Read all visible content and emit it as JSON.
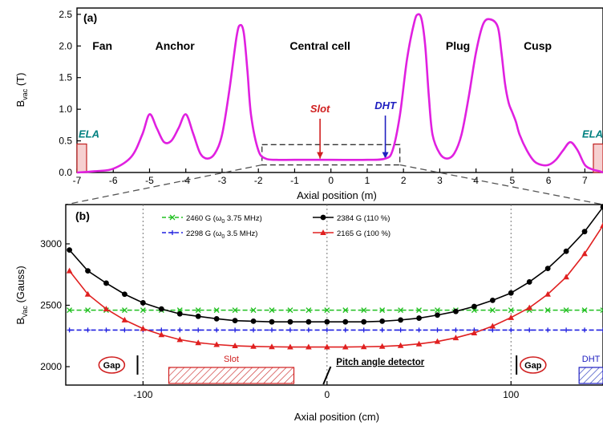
{
  "chart_data": [
    {
      "panel_label": "(a)",
      "type": "line",
      "xlabel": "Axial position (m)",
      "ylabel": "B",
      "ylabel_sub": "vac",
      "ylabel_unit": " (T)",
      "xlim": [
        -7,
        7.5
      ],
      "ylim": [
        0,
        2.6
      ],
      "xticks": [
        -7,
        -6,
        -5,
        -4,
        -3,
        -2,
        -1,
        0,
        1,
        2,
        3,
        4,
        5,
        6,
        7
      ],
      "yticks": [
        0.0,
        0.5,
        1.0,
        1.5,
        2.0,
        2.5
      ],
      "ytick_labels": [
        "0.0",
        "0.5",
        "1.0",
        "1.5",
        "2.0",
        "2.5"
      ],
      "series": [
        {
          "color": "#e020e0",
          "x": [
            -7.0,
            -6.5,
            -6.0,
            -5.5,
            -5.2,
            -5.0,
            -4.8,
            -4.6,
            -4.4,
            -4.2,
            -4.0,
            -3.8,
            -3.6,
            -3.4,
            -3.2,
            -3.0,
            -2.8,
            -2.6,
            -2.5,
            -2.4,
            -2.3,
            -2.2,
            -2.0,
            -1.8,
            -1.5,
            -1.0,
            0.0,
            1.0,
            1.5,
            1.7,
            1.9,
            2.1,
            2.3,
            2.4,
            2.5,
            2.6,
            2.7,
            2.8,
            3.0,
            3.2,
            3.4,
            3.6,
            3.8,
            4.0,
            4.2,
            4.4,
            4.6,
            4.7,
            4.8,
            4.9,
            5.0,
            5.1,
            5.2,
            5.4,
            5.6,
            5.8,
            6.0,
            6.2,
            6.4,
            6.6,
            6.8,
            7.0,
            7.2,
            7.4,
            7.5
          ],
          "y": [
            0.0,
            0.02,
            0.06,
            0.25,
            0.6,
            0.92,
            0.7,
            0.48,
            0.5,
            0.7,
            0.92,
            0.62,
            0.3,
            0.22,
            0.3,
            0.6,
            1.3,
            2.15,
            2.33,
            2.2,
            1.6,
            0.9,
            0.35,
            0.22,
            0.2,
            0.2,
            0.2,
            0.2,
            0.22,
            0.35,
            0.9,
            1.8,
            2.38,
            2.5,
            2.42,
            2.0,
            1.2,
            0.6,
            0.3,
            0.22,
            0.3,
            0.6,
            1.2,
            1.9,
            2.35,
            2.42,
            2.3,
            1.9,
            1.4,
            1.1,
            0.95,
            0.8,
            0.6,
            0.35,
            0.18,
            0.12,
            0.12,
            0.2,
            0.35,
            0.48,
            0.35,
            0.12,
            0.05,
            0.02,
            0.0
          ]
        }
      ],
      "region_labels": [
        {
          "text": "Fan",
          "x": -6.3
        },
        {
          "text": "Anchor",
          "x": -4.3
        },
        {
          "text": "Central cell",
          "x": -0.3
        },
        {
          "text": "Plug",
          "x": 3.5
        },
        {
          "text": "Cusp",
          "x": 5.7
        }
      ],
      "annotations": [
        {
          "text": "Slot",
          "x": -0.3,
          "arrow_top": 0.85,
          "arrow_bottom": 0.22,
          "color": "#d02020"
        },
        {
          "text": "DHT",
          "x": 1.5,
          "arrow_top": 0.9,
          "arrow_bottom": 0.22,
          "color": "#2020c0"
        },
        {
          "text": "ELA",
          "x": -7.0,
          "color": "#008080"
        },
        {
          "text": "ELA",
          "x": 7.5,
          "color": "#008080"
        }
      ],
      "zoom_box": {
        "x": [
          -1.9,
          1.9
        ],
        "y": [
          0.12,
          0.44
        ]
      }
    },
    {
      "panel_label": "(b)",
      "type": "line",
      "xlabel": "Axial position (cm)",
      "ylabel": "B",
      "ylabel_sub": "Vac",
      "ylabel_unit": " (Gauss)",
      "xlim": [
        -142,
        150
      ],
      "ylim": [
        1850,
        3320
      ],
      "xticks": [
        -100,
        0,
        100
      ],
      "yticks": [
        2000,
        2500,
        3000
      ],
      "grid_x": [
        -100,
        0,
        100
      ],
      "legend_placement": "top",
      "series": [
        {
          "name": "2460 G (ω",
          "name_sub": "0",
          "name_rest": " 3.75 MHz)",
          "color": "#20c020",
          "marker": "x",
          "x": [
            -140,
            -130,
            -120,
            -110,
            -100,
            -90,
            -80,
            -70,
            -60,
            -50,
            -40,
            -30,
            -20,
            -10,
            0,
            10,
            20,
            30,
            40,
            50,
            60,
            70,
            80,
            90,
            100,
            110,
            120,
            130,
            140,
            150
          ],
          "y": [
            2460,
            2460,
            2460,
            2460,
            2460,
            2460,
            2460,
            2460,
            2460,
            2460,
            2460,
            2460,
            2460,
            2460,
            2460,
            2460,
            2460,
            2460,
            2460,
            2460,
            2460,
            2460,
            2460,
            2460,
            2460,
            2460,
            2460,
            2460,
            2460,
            2460
          ]
        },
        {
          "name": "2384 G (110 %)",
          "color": "#000000",
          "marker": "circle",
          "x": [
            -140,
            -130,
            -120,
            -110,
            -100,
            -90,
            -80,
            -70,
            -60,
            -50,
            -40,
            -30,
            -20,
            -10,
            0,
            10,
            20,
            30,
            40,
            50,
            60,
            70,
            80,
            90,
            100,
            110,
            120,
            130,
            140,
            150
          ],
          "y": [
            2950,
            2780,
            2680,
            2590,
            2520,
            2470,
            2430,
            2410,
            2390,
            2375,
            2370,
            2365,
            2365,
            2365,
            2365,
            2365,
            2365,
            2370,
            2380,
            2395,
            2420,
            2450,
            2490,
            2540,
            2600,
            2690,
            2800,
            2940,
            3100,
            3300
          ]
        },
        {
          "name": "2298 G (ω",
          "name_sub": "0",
          "name_rest": " 3.5  MHz)",
          "color": "#2020e0",
          "marker": "plus",
          "x": [
            -140,
            -130,
            -120,
            -110,
            -100,
            -90,
            -80,
            -70,
            -60,
            -50,
            -40,
            -30,
            -20,
            -10,
            0,
            10,
            20,
            30,
            40,
            50,
            60,
            70,
            80,
            90,
            100,
            110,
            120,
            130,
            140,
            150
          ],
          "y": [
            2298,
            2298,
            2298,
            2298,
            2298,
            2298,
            2298,
            2298,
            2298,
            2298,
            2298,
            2298,
            2298,
            2298,
            2298,
            2298,
            2298,
            2298,
            2298,
            2298,
            2298,
            2298,
            2298,
            2298,
            2298,
            2298,
            2298,
            2298,
            2298,
            2298
          ]
        },
        {
          "name": "2165 G (100 %)",
          "color": "#e02020",
          "marker": "triangle",
          "x": [
            -140,
            -130,
            -120,
            -110,
            -100,
            -90,
            -80,
            -70,
            -60,
            -50,
            -40,
            -30,
            -20,
            -10,
            0,
            10,
            20,
            30,
            40,
            50,
            60,
            70,
            80,
            90,
            100,
            110,
            120,
            130,
            140,
            150
          ],
          "y": [
            2780,
            2590,
            2470,
            2380,
            2310,
            2260,
            2220,
            2195,
            2180,
            2170,
            2165,
            2162,
            2160,
            2160,
            2160,
            2160,
            2162,
            2165,
            2172,
            2185,
            2205,
            2235,
            2275,
            2330,
            2400,
            2480,
            2590,
            2730,
            2920,
            3150
          ]
        }
      ],
      "annotations": [
        {
          "text": "Gap",
          "x": -117,
          "color": "#d02020"
        },
        {
          "text": "Slot",
          "x": -52,
          "x_range": [
            -86,
            -18
          ],
          "color": "#d02020"
        },
        {
          "text": "Pitch angle detector",
          "x": 5,
          "color": "#000000"
        },
        {
          "text": "Gap",
          "x": 112,
          "color": "#d02020"
        },
        {
          "text": "DHT",
          "x": 145,
          "x_range": [
            137,
            150
          ],
          "color": "#2020c0"
        }
      ]
    }
  ]
}
